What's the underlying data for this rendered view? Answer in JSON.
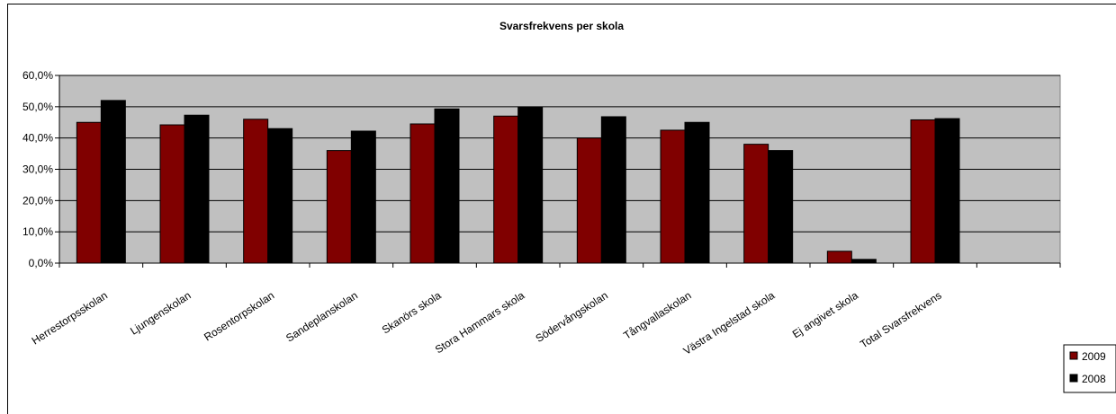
{
  "chart_data": {
    "type": "bar",
    "title": "Svarsfrekvens per skola",
    "xlabel": "",
    "ylabel": "",
    "ylim": [
      0,
      60
    ],
    "yticks": [
      "0,0%",
      "10,0%",
      "20,0%",
      "30,0%",
      "40,0%",
      "50,0%",
      "60,0%"
    ],
    "categories": [
      "Herrestorpsskolan",
      "Ljungenskolan",
      "Rosentorpskolan",
      "Sandeplanskolan",
      "Skanörs skola",
      "Stora Hammars skola",
      "Södervångskolan",
      "Tångvallaskolan",
      "Västra Ingelstad skola",
      "Ej angivet skola",
      "Total Svarsfrekvens"
    ],
    "series": [
      {
        "name": "2009",
        "color": "#800000",
        "values": [
          45.0,
          44.2,
          46.0,
          36.0,
          44.5,
          47.0,
          40.0,
          42.5,
          38.0,
          3.8,
          45.8
        ]
      },
      {
        "name": "2008",
        "color": "#000000",
        "values": [
          52.0,
          47.3,
          43.0,
          42.2,
          49.3,
          49.8,
          46.8,
          45.0,
          36.0,
          1.2,
          46.2
        ]
      }
    ],
    "grid": true,
    "plot_background": "#c0c0c0",
    "legend": "right"
  }
}
